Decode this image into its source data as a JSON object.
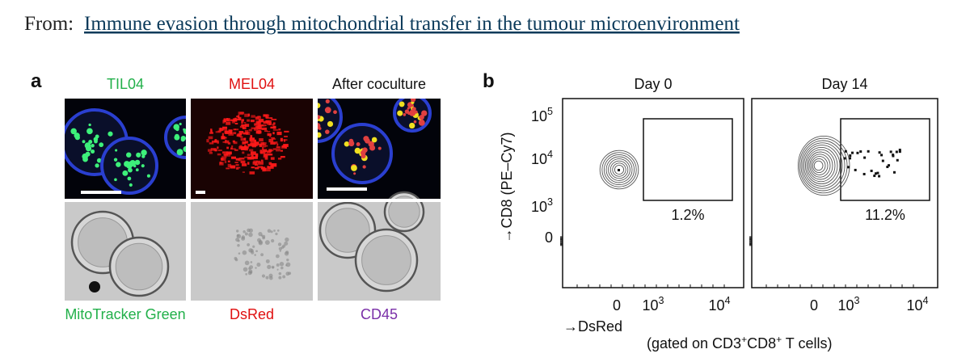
{
  "header": {
    "prefix": "From:",
    "link": "Immune evasion through mitochondrial transfer in the tumour microenvironment"
  },
  "panel_a": {
    "label": "a",
    "columns": [
      {
        "title": "TIL04",
        "stain": "MitoTracker Green"
      },
      {
        "title": "MEL04",
        "stain": "DsRed"
      },
      {
        "title": "After coculture",
        "stain": "CD45"
      }
    ]
  },
  "panel_b": {
    "label": "b",
    "plots": [
      {
        "title": "Day 0",
        "gate": "1.2%"
      },
      {
        "title": "Day 14",
        "gate": "11.2%"
      }
    ],
    "y_label": "→CD8 (PE–Cy7)",
    "y_ticks": [
      {
        "base": "10",
        "exp": "5"
      },
      {
        "base": "10",
        "exp": "4"
      },
      {
        "base": "10",
        "exp": "3"
      },
      {
        "base": "0"
      }
    ],
    "x_ticks": [
      {
        "base": "0"
      },
      {
        "base": "10",
        "exp": "3"
      },
      {
        "base": "10",
        "exp": "4"
      }
    ],
    "x_label": "→DsRed",
    "note": [
      "(gated on CD3",
      "+",
      "CD8",
      "+",
      " T cells)"
    ]
  }
}
